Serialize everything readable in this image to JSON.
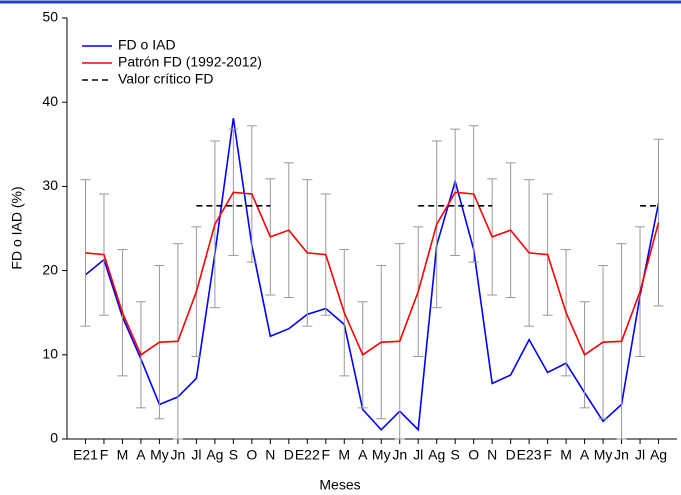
{
  "chart_data": {
    "type": "line",
    "ylabel": "FD o IAD (%)",
    "xlabel": "Meses",
    "categories": [
      "E21",
      "F",
      "M",
      "A",
      "My",
      "Jn",
      "Jl",
      "Ag",
      "S",
      "O",
      "N",
      "D",
      "E22",
      "F",
      "M",
      "A",
      "My",
      "Jn",
      "Jl",
      "Ag",
      "S",
      "O",
      "N",
      "D",
      "E23",
      "F",
      "M",
      "A",
      "My",
      "Jn",
      "Jl",
      "Ag"
    ],
    "series": [
      {
        "name": "FD o IAD",
        "color": "#0000ff",
        "values": [
          19.5,
          21.3,
          14.5,
          9.5,
          4.1,
          5.0,
          7.2,
          22,
          38.1,
          23,
          12.2,
          13.1,
          14.8,
          15.5,
          13.6,
          3.5,
          1.1,
          3.3,
          1.1,
          23,
          30.6,
          22.5,
          6.6,
          7.6,
          11.8,
          7.9,
          9,
          5.5,
          2.1,
          4.1,
          17,
          28
        ]
      },
      {
        "name": "Patrón FD (1992-2012)",
        "color": "#ff0000",
        "values": [
          22.1,
          21.9,
          15,
          10,
          11.5,
          11.6,
          17.5,
          25.5,
          29.3,
          29.1,
          24,
          24.8,
          22.1,
          21.9,
          15,
          10,
          11.5,
          11.6,
          17.5,
          25.5,
          29.3,
          29.1,
          24,
          24.8,
          22.1,
          21.9,
          15,
          10,
          11.5,
          11.6,
          17.5,
          25.7
        ],
        "errors": [
          8.7,
          7.2,
          7.5,
          6.3,
          9.1,
          11.6,
          7.7,
          9.9,
          7.5,
          8.1,
          6.9,
          8,
          8.7,
          7.2,
          7.5,
          6.3,
          9.1,
          11.6,
          7.7,
          9.9,
          7.5,
          8.1,
          6.9,
          8,
          8.7,
          7.2,
          7.5,
          6.3,
          9.1,
          11.6,
          7.7,
          9.9
        ]
      },
      {
        "name": "Valor crítico FD",
        "color": "#000000",
        "dash": true,
        "values": [
          null,
          null,
          null,
          null,
          null,
          null,
          27.7,
          27.7,
          27.7,
          27.7,
          27.7,
          null,
          null,
          null,
          null,
          null,
          null,
          null,
          27.7,
          27.7,
          27.7,
          27.7,
          27.7,
          null,
          null,
          null,
          null,
          null,
          null,
          null,
          27.7,
          27.7
        ]
      }
    ],
    "ylim": [
      0,
      50
    ],
    "yticks": [
      0,
      10,
      20,
      30,
      40,
      50
    ],
    "legend": "upper-left"
  }
}
